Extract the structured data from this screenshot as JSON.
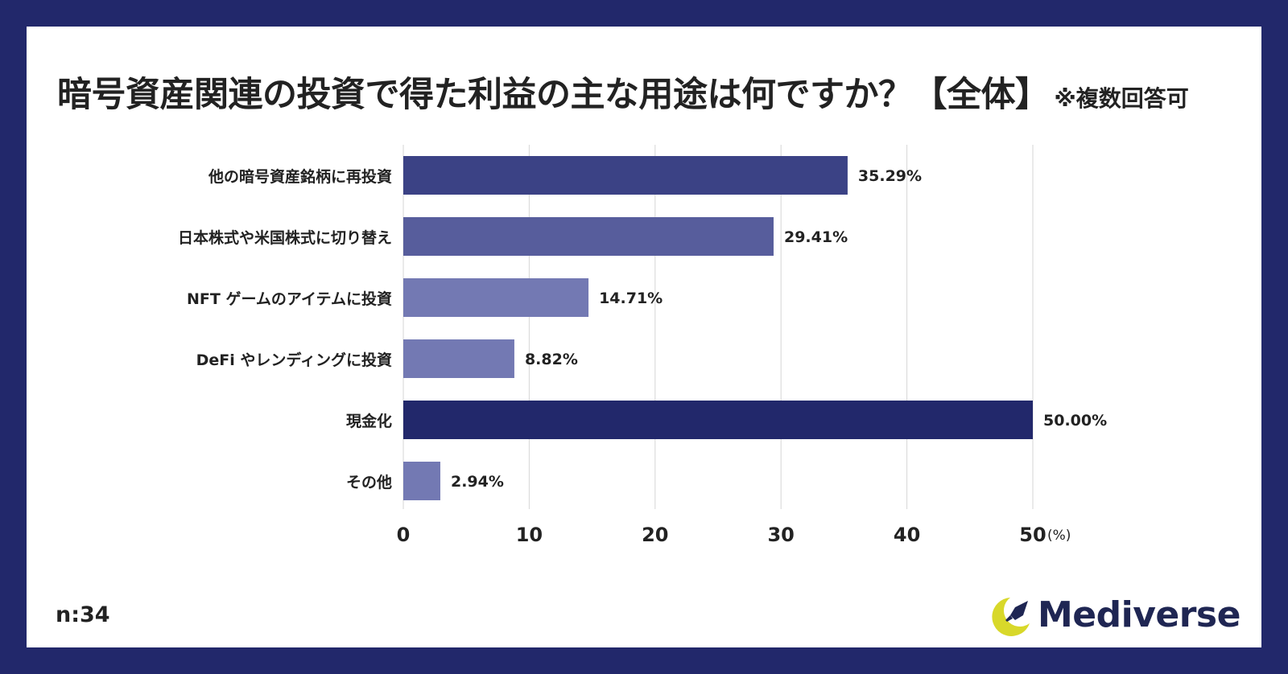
{
  "title": "暗号資産関連の投資で得た利益の主な用途は何ですか？【全体】",
  "title_note": "※複数回答可",
  "sample_size": "n:34",
  "brand": "Mediverse",
  "logo_icon": "crescent-rocket-icon",
  "colors": {
    "background": "#22286b",
    "bar_default": "#7379b3",
    "bar_second": "#575d9c",
    "bar_first": "#3b4285",
    "bar_max": "#22286b",
    "logo_accent": "#d8d82a"
  },
  "chart_data": {
    "type": "bar",
    "orientation": "horizontal",
    "categories": [
      "他の暗号資産銘柄に再投資",
      "日本株式や米国株式に切り替え",
      "NFT ゲームのアイテムに投資",
      "DeFi やレンディングに投資",
      "現金化",
      "その他"
    ],
    "values": [
      35.29,
      29.41,
      14.71,
      8.82,
      50.0,
      2.94
    ],
    "value_labels": [
      "35.29%",
      "29.41%",
      "14.71%",
      "8.82%",
      "50.00%",
      "2.94%"
    ],
    "xlim": [
      0,
      50
    ],
    "xticks": [
      0,
      10,
      20,
      30,
      40,
      50
    ],
    "xtick_labels": [
      "0",
      "10",
      "20",
      "30",
      "40",
      "50"
    ],
    "x_unit": "(%)",
    "grid": "vertical"
  }
}
